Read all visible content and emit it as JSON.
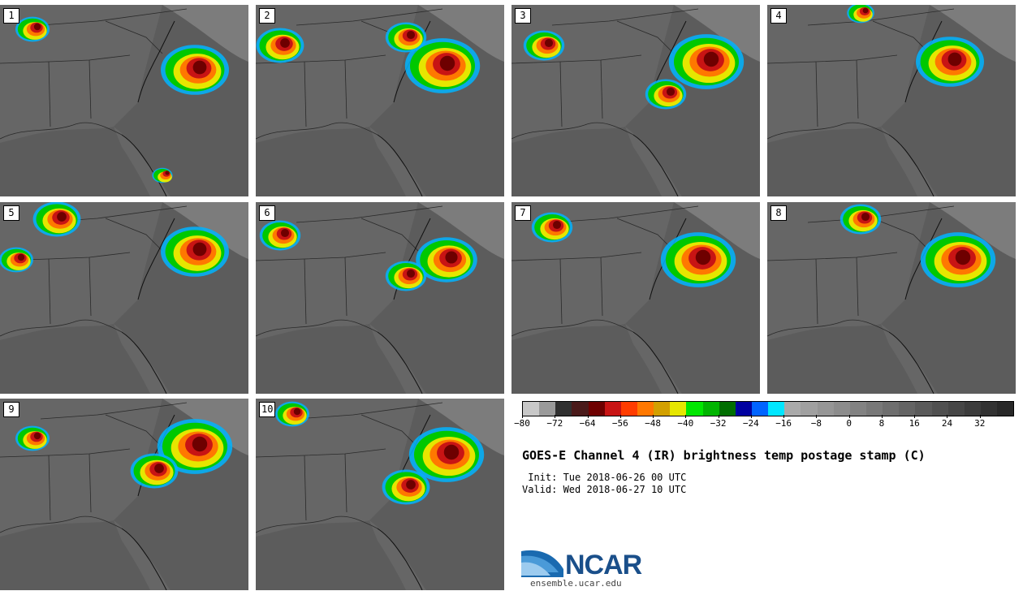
{
  "panels": [
    {
      "label": "1"
    },
    {
      "label": "2"
    },
    {
      "label": "3"
    },
    {
      "label": "4"
    },
    {
      "label": "5"
    },
    {
      "label": "6"
    },
    {
      "label": "7"
    },
    {
      "label": "8"
    },
    {
      "label": "9"
    },
    {
      "label": "10"
    }
  ],
  "colorbar": {
    "colors": [
      "#c8c8c8",
      "#9a9a9a",
      "#303030",
      "#4a1a1a",
      "#6e0000",
      "#c81414",
      "#ff3c00",
      "#ff7800",
      "#d2a000",
      "#e6e600",
      "#00e600",
      "#00b400",
      "#006e00",
      "#0000a0",
      "#0064ff",
      "#00e6ff",
      "#aaaaaa",
      "#a0a0a0",
      "#969696",
      "#8c8c8c",
      "#828282",
      "#787878",
      "#6e6e6e",
      "#646464",
      "#5a5a5a",
      "#505050",
      "#464646",
      "#3c3c3c",
      "#323232",
      "#282828"
    ],
    "labels": [
      "−80",
      "−72",
      "−64",
      "−56",
      "−48",
      "−40",
      "−32",
      "−24",
      "−16",
      "−8",
      "0",
      "8",
      "16",
      "24",
      "32"
    ]
  },
  "title": "GOES-E Channel 4 (IR) brightness temp postage stamp (C)",
  "init": " Init: Tue 2018-06-26 00 UTC",
  "valid": "Valid: Wed 2018-06-27 10 UTC",
  "logo": {
    "text": "NCAR",
    "url": "ensemble.ucar.edu"
  }
}
